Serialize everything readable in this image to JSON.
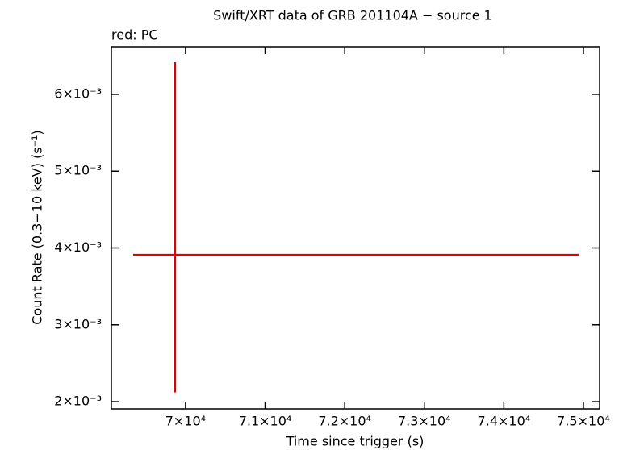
{
  "chart_data": {
    "type": "errorbar",
    "title": "Swift/XRT data of GRB 201104A − source 1",
    "subtitle": "red: PC",
    "x_label": "Time since trigger (s)",
    "y_label": "Count Rate (0.3−10 keV) (s⁻¹)",
    "series": [
      {
        "name": "PC",
        "color": "#e00000",
        "x": [
          69868
        ],
        "xerr_minus": [
          526
        ],
        "xerr_plus": [
          5071
        ],
        "y": [
          0.00391
        ],
        "yerr_minus": [
          0.00179
        ],
        "yerr_plus": [
          0.00251
        ]
      }
    ],
    "xlim": [
      69068,
      75203
    ],
    "xticks": [
      {
        "value": 70000,
        "label": "7×10⁴"
      },
      {
        "value": 71000,
        "label": "7.1×10⁴"
      },
      {
        "value": 72000,
        "label": "7.2×10⁴"
      },
      {
        "value": 73000,
        "label": "7.3×10⁴"
      },
      {
        "value": 74000,
        "label": "7.4×10⁴"
      },
      {
        "value": 75000,
        "label": "7.5×10⁴"
      }
    ],
    "ylim": [
      0.001906,
      0.006619
    ],
    "yticks": [
      {
        "value": 0.002,
        "label": "2×10⁻³"
      },
      {
        "value": 0.003,
        "label": "3×10⁻³"
      },
      {
        "value": 0.004,
        "label": "4×10⁻³"
      },
      {
        "value": 0.005,
        "label": "5×10⁻³"
      },
      {
        "value": 0.006,
        "label": "6×10⁻³"
      }
    ]
  }
}
